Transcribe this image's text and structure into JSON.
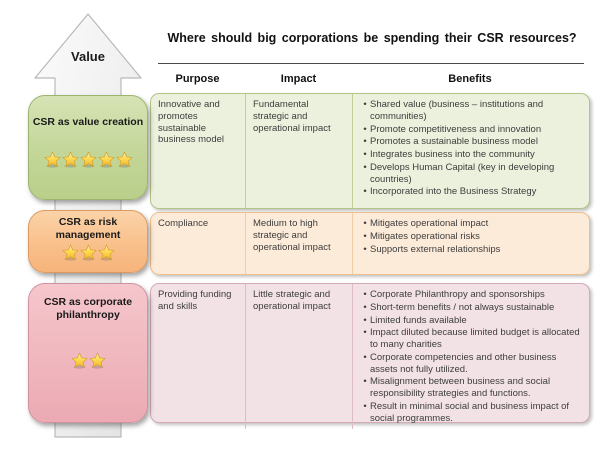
{
  "title": "Where should big corporations be spending their CSR resources?",
  "arrow_label": "Value",
  "columns": {
    "purpose": "Purpose",
    "impact": "Impact",
    "benefits": "Benefits"
  },
  "rows": [
    {
      "label": "CSR as value creation",
      "stars": 5,
      "purpose": "Innovative and promotes sustainable business model",
      "impact": "Fundamental strategic and operational impact",
      "benefits": [
        "Shared value (business – institutions and communities)",
        "Promote competitiveness and innovation",
        "Promotes a sustainable business model",
        "Integrates business into the community",
        "Develops Human Capital (key in developing countries)",
        "Incorporated into the Business Strategy"
      ]
    },
    {
      "label": "CSR as risk management",
      "stars": 3,
      "purpose": "Compliance",
      "impact": "Medium to high strategic and operational impact",
      "benefits": [
        "Mitigates operational impact",
        "Mitigates operational risks",
        "Supports external relationships"
      ]
    },
    {
      "label": "CSR as corporate philanthropy",
      "stars": 2,
      "purpose": "Providing funding and skills",
      "impact": "Little strategic and operational impact",
      "benefits": [
        "Corporate Philanthropy and sponsorships",
        "Short-term benefits / not always sustainable",
        "Limited funds available",
        "Impact diluted because limited budget is allocated to many charities",
        "Corporate competencies and other business assets not fully utilized.",
        "Misalignment between business and social responsibility strategies and functions.",
        "Result in minimal social and business impact of social programmes."
      ]
    }
  ],
  "colors": {
    "value_creation_box": "#c3d698",
    "value_creation_panel": "#ecf1dd",
    "risk_management_box": "#f9c08c",
    "risk_management_panel": "#fdebd9",
    "philanthropy_box": "#f0b7be",
    "philanthropy_panel": "#f2e2e6",
    "star_gold": "#ffd84d",
    "arrow_gray": "#ececec"
  }
}
